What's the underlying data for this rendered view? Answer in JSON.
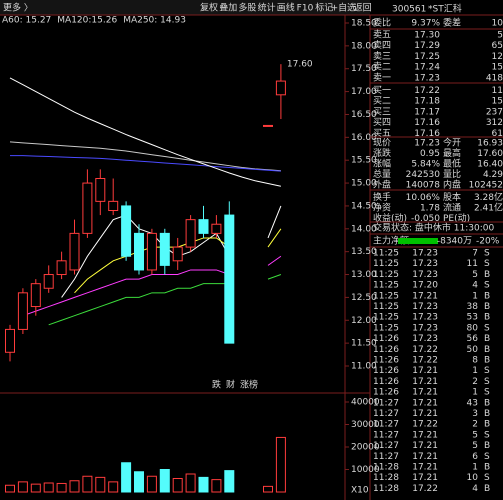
{
  "toolbar": {
    "more": "更多 〉",
    "buttons": [
      "复权",
      "叠加",
      "多股",
      "统计",
      "画线",
      "F10",
      "标记",
      "+自选",
      "返回"
    ]
  },
  "chart_data": {
    "type": "candlestick",
    "ma_labels": [
      {
        "text": "A60: 15.27",
        "color": "#e8e8e8"
      },
      {
        "text": "MA120:15.26",
        "color": "#4a4aff"
      },
      {
        "text": "MA250: 14.93",
        "color": "#d0d0d0"
      }
    ],
    "high_label": "17.60",
    "ylim": [
      11.0,
      18.5
    ],
    "yticks": [
      {
        "value": 18.5,
        "label": "18.50"
      },
      {
        "value": 18,
        "label": "18.00"
      },
      {
        "value": 17.5,
        "label": "17.50"
      },
      {
        "value": 17,
        "label": "17.00"
      },
      {
        "value": 16.5,
        "label": "16.50"
      },
      {
        "value": 16,
        "label": "16.00"
      },
      {
        "value": 15.5,
        "label": "15.50"
      },
      {
        "value": 15,
        "label": "15.00"
      },
      {
        "value": 14.5,
        "label": "14.50"
      },
      {
        "value": 14,
        "label": "14.00"
      },
      {
        "value": 13.5,
        "label": "13.50"
      },
      {
        "value": 13,
        "label": "13.00"
      },
      {
        "value": 12.5,
        "label": "12.50"
      },
      {
        "value": 12,
        "label": "12.00"
      },
      {
        "value": 11.5,
        "label": "11.50"
      },
      {
        "value": 11,
        "label": "11.00"
      }
    ],
    "up_color": "#ff3c3c",
    "down_color": "#54fcfc",
    "candles": [
      {
        "o": 11.3,
        "h": 11.9,
        "l": 11.1,
        "c": 11.8
      },
      {
        "o": 11.8,
        "h": 12.7,
        "l": 11.7,
        "c": 12.6
      },
      {
        "o": 12.3,
        "h": 12.9,
        "l": 12.1,
        "c": 12.8
      },
      {
        "o": 12.7,
        "h": 13.2,
        "l": 12.6,
        "c": 13.0
      },
      {
        "o": 13.0,
        "h": 13.5,
        "l": 12.9,
        "c": 13.3
      },
      {
        "o": 13.1,
        "h": 14.2,
        "l": 13.0,
        "c": 13.9
      },
      {
        "o": 13.9,
        "h": 15.3,
        "l": 13.8,
        "c": 15.0
      },
      {
        "o": 14.6,
        "h": 15.3,
        "l": 14.3,
        "c": 15.1
      },
      {
        "o": 14.4,
        "h": 15.1,
        "l": 14.3,
        "c": 14.6
      },
      {
        "o": 14.5,
        "h": 14.6,
        "l": 13.3,
        "c": 13.4
      },
      {
        "o": 13.9,
        "h": 14.1,
        "l": 13.0,
        "c": 13.1
      },
      {
        "o": 13.1,
        "h": 14.0,
        "l": 13.0,
        "c": 13.9
      },
      {
        "o": 13.9,
        "h": 14.0,
        "l": 13.0,
        "c": 13.2
      },
      {
        "o": 13.3,
        "h": 13.8,
        "l": 13.1,
        "c": 13.6
      },
      {
        "o": 13.6,
        "h": 14.3,
        "l": 13.5,
        "c": 14.2
      },
      {
        "o": 14.2,
        "h": 14.5,
        "l": 13.8,
        "c": 13.9
      },
      {
        "o": 13.9,
        "h": 14.3,
        "l": 13.8,
        "c": 14.1
      },
      {
        "o": 14.3,
        "h": 14.6,
        "l": 11.5,
        "c": 11.5
      },
      null,
      null,
      {
        "o": 16.26,
        "h": 16.26,
        "l": 16.26,
        "c": 16.26
      },
      {
        "o": 16.93,
        "h": 17.6,
        "l": 16.4,
        "c": 17.23
      }
    ],
    "series": [
      {
        "color": "#ffffff",
        "values": [
          null,
          null,
          null,
          null,
          12.5,
          12.9,
          13.4,
          13.8,
          14.2,
          14.3,
          14.0,
          13.9,
          13.6,
          13.4,
          13.5,
          13.7,
          13.9,
          13.4,
          null,
          null,
          13.8,
          14.5
        ]
      },
      {
        "color": "#ffff3c",
        "values": [
          null,
          null,
          null,
          null,
          null,
          12.6,
          12.9,
          13.1,
          13.3,
          13.4,
          13.5,
          13.6,
          13.6,
          13.6,
          13.7,
          13.8,
          13.8,
          13.6,
          null,
          null,
          13.6,
          14.0
        ]
      },
      {
        "color": "#ff3cff",
        "values": [
          null,
          12.1,
          12.2,
          12.3,
          12.4,
          12.5,
          12.6,
          12.7,
          12.8,
          12.9,
          12.9,
          13.0,
          13.0,
          13.0,
          13.1,
          13.1,
          13.1,
          13.0,
          null,
          null,
          13.2,
          13.4
        ]
      },
      {
        "color": "#3cdc3c",
        "values": [
          null,
          null,
          null,
          11.9,
          12.0,
          12.1,
          12.2,
          12.3,
          12.4,
          12.5,
          12.5,
          12.6,
          12.6,
          12.7,
          12.7,
          12.8,
          12.8,
          12.8,
          null,
          null,
          12.9,
          13.0
        ]
      },
      {
        "color": "#c8c8c8",
        "values": [
          15.9,
          15.88,
          15.86,
          15.84,
          15.82,
          15.8,
          15.78,
          15.76,
          15.73,
          15.7,
          15.66,
          15.62,
          15.58,
          15.54,
          15.5,
          15.46,
          15.42,
          15.38,
          15.34,
          15.31,
          15.29,
          15.27
        ]
      },
      {
        "color": "#4a4aff",
        "values": [
          15.6,
          15.6,
          15.59,
          15.58,
          15.57,
          15.56,
          15.55,
          15.54,
          15.52,
          15.5,
          15.48,
          15.46,
          15.44,
          15.42,
          15.4,
          15.38,
          15.36,
          15.34,
          15.32,
          15.3,
          15.28,
          15.26
        ]
      },
      {
        "color": "#ffffff",
        "values": [
          17.3,
          17.15,
          17.0,
          16.85,
          16.7,
          16.55,
          16.42,
          16.3,
          16.18,
          16.06,
          15.95,
          15.84,
          15.73,
          15.62,
          15.52,
          15.42,
          15.32,
          15.22,
          15.13,
          15.05,
          14.99,
          14.93
        ]
      }
    ],
    "volumes": [
      3000,
      4500,
      3500,
      4000,
      3800,
      5000,
      7000,
      6500,
      4500,
      13000,
      9000,
      7000,
      10000,
      6000,
      8000,
      6500,
      5500,
      9500,
      null,
      null,
      2500,
      24253
    ],
    "vol_ylim": [
      0,
      40000
    ],
    "vol_yticks": [
      10000,
      20000,
      30000,
      40000
    ],
    "volume_unit": "X10",
    "tags": [
      {
        "text": "跌",
        "color": "#3cdc3c"
      },
      {
        "text": "财",
        "color": "#54fcfc"
      },
      {
        "text": "涨榜",
        "color": "#ff3c3c"
      }
    ]
  },
  "quote": {
    "code": "300561",
    "name": "*ST汇科",
    "ratio": [
      "委比",
      "9.37%",
      "委差",
      "10"
    ],
    "book": [
      [
        "卖五",
        "17.30",
        "5"
      ],
      [
        "卖四",
        "17.29",
        "65"
      ],
      [
        "卖三",
        "17.25",
        "12"
      ],
      [
        "卖二",
        "17.24",
        "15"
      ],
      [
        "卖一",
        "17.23",
        "418"
      ],
      [
        "买一",
        "17.22",
        "11"
      ],
      [
        "买二",
        "17.18",
        "15"
      ],
      [
        "买三",
        "17.17",
        "237"
      ],
      [
        "买四",
        "17.16",
        "312"
      ],
      [
        "买五",
        "17.16",
        "61"
      ]
    ],
    "stats": [
      [
        "现价",
        "17.23",
        "今开",
        "16.93"
      ],
      [
        "涨跌",
        "0.95",
        "最高",
        "17.60"
      ],
      [
        "涨幅",
        "5.84%",
        "最低",
        "16.40"
      ],
      [
        "总量",
        "242530",
        "量比",
        "4.29"
      ],
      [
        "外盘",
        "140078",
        "内盘",
        "102452"
      ],
      [
        "换手",
        "10.06%",
        "股本",
        "3.28亿"
      ],
      [
        "净资",
        "1.78",
        "流通",
        "2.41亿"
      ],
      [
        "收益(动)",
        "-0.050",
        "PE(动)",
        ""
      ]
    ],
    "status": "交易状态: 盘中休市 11:30:00",
    "flow": [
      "主力净额",
      "-8340万",
      "-20%"
    ]
  },
  "trades": [
    [
      "11:25",
      "17.23",
      "7",
      "S"
    ],
    [
      "11:25",
      "17.23",
      "11",
      "S"
    ],
    [
      "11:25",
      "17.23",
      "5",
      "B"
    ],
    [
      "11:25",
      "17.20",
      "4",
      "S"
    ],
    [
      "11:25",
      "17.21",
      "1",
      "B"
    ],
    [
      "11:25",
      "17.23",
      "38",
      "B"
    ],
    [
      "11:25",
      "17.23",
      "53",
      "B"
    ],
    [
      "11:25",
      "17.23",
      "80",
      "S"
    ],
    [
      "11:26",
      "17.23",
      "56",
      "B"
    ],
    [
      "11:26",
      "17.22",
      "50",
      "B"
    ],
    [
      "11:26",
      "17.22",
      "8",
      "B"
    ],
    [
      "11:26",
      "17.21",
      "1",
      "S"
    ],
    [
      "11:26",
      "17.21",
      "2",
      "S"
    ],
    [
      "11:26",
      "17.21",
      "1",
      "S"
    ],
    [
      "11:27",
      "17.21",
      "43",
      "B"
    ],
    [
      "11:27",
      "17.21",
      "3",
      "B"
    ],
    [
      "11:27",
      "17.22",
      "2",
      "B"
    ],
    [
      "11:27",
      "17.21",
      "5",
      "S"
    ],
    [
      "11:27",
      "17.21",
      "5",
      "B"
    ],
    [
      "11:27",
      "17.21",
      "6",
      "S"
    ],
    [
      "11:28",
      "17.21",
      "1",
      "B"
    ],
    [
      "11:28",
      "17.21",
      "10",
      "S"
    ],
    [
      "11:28",
      "17.22",
      "4",
      "B"
    ]
  ]
}
